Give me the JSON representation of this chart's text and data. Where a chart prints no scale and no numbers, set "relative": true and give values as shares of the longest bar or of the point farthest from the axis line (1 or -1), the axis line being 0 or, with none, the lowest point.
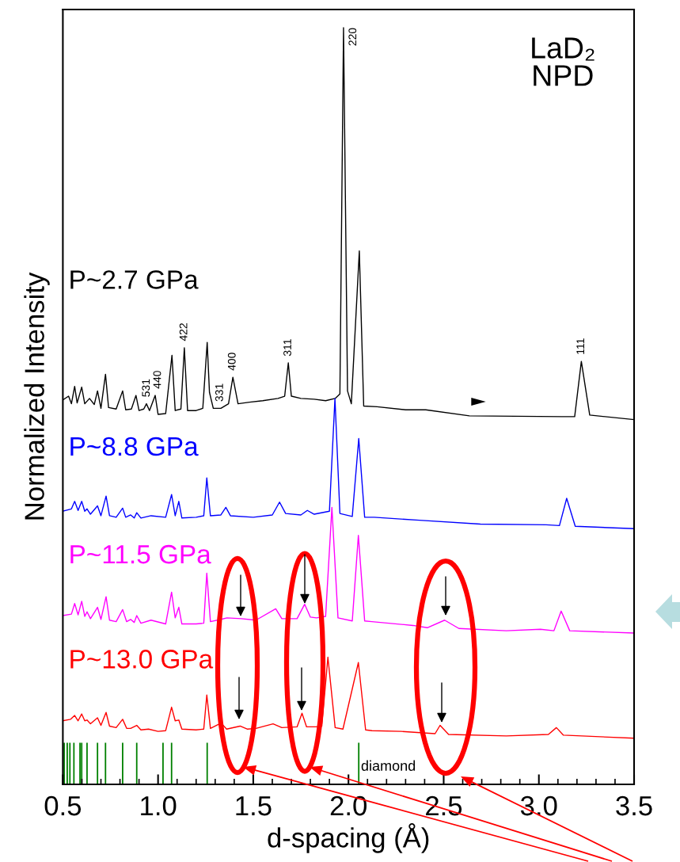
{
  "chart_data": {
    "type": "line",
    "xlabel": "d-spacing (Å)",
    "ylabel": "Normalized Intensity",
    "relative": true,
    "xlim": [
      0.5,
      3.5
    ],
    "xticks": [
      0.5,
      {
        "value": 1,
        "label": "1.0"
      },
      1.5,
      {
        "value": 2,
        "label": "2.0"
      },
      2.5,
      {
        "value": 3,
        "label": "3.0"
      },
      3.5
    ],
    "tick_labels": "x",
    "line_style": "solid",
    "annotations": [
      "LaD₂\nNPD",
      {
        "text": "220",
        "x": 1.974,
        "y": 1
      },
      {
        "text": "111",
        "x": 3.223,
        "y": 0.559
      },
      {
        "text": "311",
        "x": 1.684,
        "y": 0.557
      },
      {
        "text": "400",
        "x": 1.392,
        "y": 0.538
      },
      {
        "text": "331",
        "x": 1.326,
        "y": 0.497
      },
      {
        "text": "422",
        "x": 1.138,
        "y": 0.577
      },
      {
        "text": "440",
        "x": 1.0,
        "y": 0.514
      },
      {
        "text": "531",
        "x": 0.941,
        "y": 0.503
      },
      {
        "text": "diamond",
        "x": 2.054,
        "y": 0.023
      }
    ],
    "series": [
      {
        "name": "P~2.7 GPa",
        "color": "#000000",
        "x": [
          0.5,
          0.53,
          0.545,
          0.562,
          0.575,
          0.599,
          0.615,
          0.64,
          0.665,
          0.682,
          0.7,
          0.724,
          0.74,
          0.78,
          0.814,
          0.83,
          0.86,
          0.884,
          0.9,
          0.925,
          0.939,
          0.955,
          0.985,
          1.0,
          1.04,
          1.073,
          1.09,
          1.12,
          1.138,
          1.155,
          1.2,
          1.235,
          1.258,
          1.27,
          1.29,
          1.33,
          1.37,
          1.393,
          1.42,
          1.48,
          1.55,
          1.63,
          1.665,
          1.684,
          1.7,
          1.75,
          1.82,
          1.88,
          1.93,
          1.955,
          1.974,
          1.995,
          2.015,
          2.057,
          2.08,
          2.15,
          2.3,
          2.406,
          2.635,
          3.121,
          3.188,
          3.223,
          3.267,
          3.5
        ],
        "values": [
          0.508,
          0.513,
          0.503,
          0.526,
          0.504,
          0.525,
          0.503,
          0.51,
          0.502,
          0.52,
          0.497,
          0.542,
          0.498,
          0.496,
          0.52,
          0.495,
          0.496,
          0.514,
          0.494,
          0.496,
          0.503,
          0.494,
          0.514,
          0.489,
          0.49,
          0.567,
          0.494,
          0.496,
          0.577,
          0.494,
          0.494,
          0.497,
          0.584,
          0.518,
          0.497,
          0.497,
          0.503,
          0.538,
          0.503,
          0.505,
          0.507,
          0.51,
          0.513,
          0.557,
          0.513,
          0.51,
          0.509,
          0.507,
          0.51,
          0.516,
          1,
          0.52,
          0.503,
          0.705,
          0.5,
          0.499,
          0.495,
          0.495,
          0.487,
          0.486,
          0.486,
          0.559,
          0.488,
          0.482
        ]
      },
      {
        "name": "P~8.8 GPa",
        "color": "#0000ff",
        "x": [
          0.5,
          0.545,
          0.562,
          0.58,
          0.599,
          0.615,
          0.627,
          0.645,
          0.682,
          0.7,
          0.727,
          0.745,
          0.78,
          0.814,
          0.83,
          0.856,
          0.875,
          0.888,
          0.91,
          0.963,
          1.04,
          1.071,
          1.09,
          1.109,
          1.125,
          1.2,
          1.24,
          1.256,
          1.275,
          1.33,
          1.356,
          1.38,
          1.5,
          1.6,
          1.638,
          1.67,
          1.75,
          1.784,
          1.82,
          1.9,
          1.929,
          1.955,
          2.02,
          2.054,
          2.085,
          2.135,
          2.373,
          2.693,
          3.038,
          3.108,
          3.146,
          3.191,
          3.5
        ],
        "values": [
          0.361,
          0.364,
          0.374,
          0.362,
          0.374,
          0.361,
          0.364,
          0.357,
          0.368,
          0.355,
          0.381,
          0.355,
          0.353,
          0.365,
          0.353,
          0.356,
          0.352,
          0.359,
          0.352,
          0.355,
          0.353,
          0.383,
          0.355,
          0.374,
          0.352,
          0.353,
          0.355,
          0.405,
          0.355,
          0.356,
          0.366,
          0.355,
          0.353,
          0.356,
          0.373,
          0.358,
          0.356,
          0.362,
          0.357,
          0.361,
          0.51,
          0.358,
          0.354,
          0.457,
          0.353,
          0.353,
          0.349,
          0.344,
          0.343,
          0.342,
          0.378,
          0.341,
          0.338
        ]
      },
      {
        "name": "P~11.5 GPa",
        "color": "#ff00ff",
        "x": [
          0.5,
          0.545,
          0.562,
          0.58,
          0.599,
          0.615,
          0.627,
          0.645,
          0.682,
          0.7,
          0.727,
          0.745,
          0.78,
          0.814,
          0.835,
          0.856,
          0.875,
          0.888,
          0.91,
          0.963,
          1.04,
          1.071,
          1.09,
          1.109,
          1.125,
          1.2,
          1.24,
          1.256,
          1.275,
          1.33,
          1.362,
          1.438,
          1.514,
          1.618,
          1.65,
          1.73,
          1.77,
          1.8,
          1.832,
          1.88,
          1.913,
          1.945,
          2.02,
          2.052,
          2.085,
          2.123,
          2.339,
          2.414,
          2.505,
          2.58,
          2.829,
          3.008,
          3.079,
          3.117,
          3.162,
          3.5
        ],
        "values": [
          0.223,
          0.225,
          0.239,
          0.224,
          0.242,
          0.222,
          0.228,
          0.219,
          0.234,
          0.218,
          0.248,
          0.217,
          0.215,
          0.231,
          0.215,
          0.218,
          0.214,
          0.223,
          0.213,
          0.217,
          0.212,
          0.254,
          0.22,
          0.234,
          0.212,
          0.212,
          0.213,
          0.279,
          0.215,
          0.218,
          0.22,
          0.219,
          0.217,
          0.232,
          0.219,
          0.219,
          0.238,
          0.221,
          0.22,
          0.222,
          0.366,
          0.22,
          0.216,
          0.329,
          0.216,
          0.215,
          0.21,
          0.207,
          0.217,
          0.206,
          0.203,
          0.205,
          0.203,
          0.229,
          0.203,
          0.2
        ]
      },
      {
        "name": "P~13.0 GPa",
        "color": "#ff0000",
        "x": [
          0.5,
          0.541,
          0.562,
          0.58,
          0.599,
          0.615,
          0.627,
          0.645,
          0.682,
          0.7,
          0.727,
          0.745,
          0.78,
          0.814,
          0.835,
          0.856,
          0.888,
          0.91,
          0.95,
          1.0,
          1.04,
          1.071,
          1.09,
          1.109,
          1.125,
          1.2,
          1.24,
          1.256,
          1.275,
          1.331,
          1.36,
          1.431,
          1.47,
          1.514,
          1.604,
          1.65,
          1.73,
          1.756,
          1.78,
          1.832,
          1.86,
          1.892,
          1.93,
          1.971,
          2.052,
          2.09,
          2.123,
          2.277,
          2.455,
          2.481,
          2.526,
          2.829,
          3.05,
          3.092,
          3.129,
          3.5
        ],
        "values": [
          0.084,
          0.086,
          0.091,
          0.084,
          0.093,
          0.084,
          0.085,
          0.08,
          0.088,
          0.078,
          0.095,
          0.077,
          0.075,
          0.086,
          0.074,
          0.074,
          0.078,
          0.072,
          0.073,
          0.07,
          0.071,
          0.102,
          0.084,
          0.085,
          0.073,
          0.072,
          0.073,
          0.118,
          0.074,
          0.081,
          0.073,
          0.077,
          0.073,
          0.074,
          0.08,
          0.075,
          0.076,
          0.094,
          0.076,
          0.076,
          0.077,
          0.168,
          0.075,
          0.073,
          0.161,
          0.072,
          0.071,
          0.07,
          0.067,
          0.078,
          0.066,
          0.064,
          0.066,
          0.075,
          0.065,
          0.061
        ]
      },
      {
        "type": "bar",
        "color": "#008000",
        "x": [
          0.507,
          0.523,
          0.537,
          0.558,
          0.59,
          0.599,
          0.627,
          0.682,
          0.724,
          0.814,
          0.888,
          1.026,
          1.071,
          1.258,
          2.054
        ],
        "values": [
          0.055,
          0.055,
          0.055,
          0.055,
          0.055,
          0.055,
          0.055,
          0.055,
          0.055,
          0.055,
          0.055,
          0.055,
          0.055,
          0.055,
          0.055
        ]
      }
    ]
  }
}
